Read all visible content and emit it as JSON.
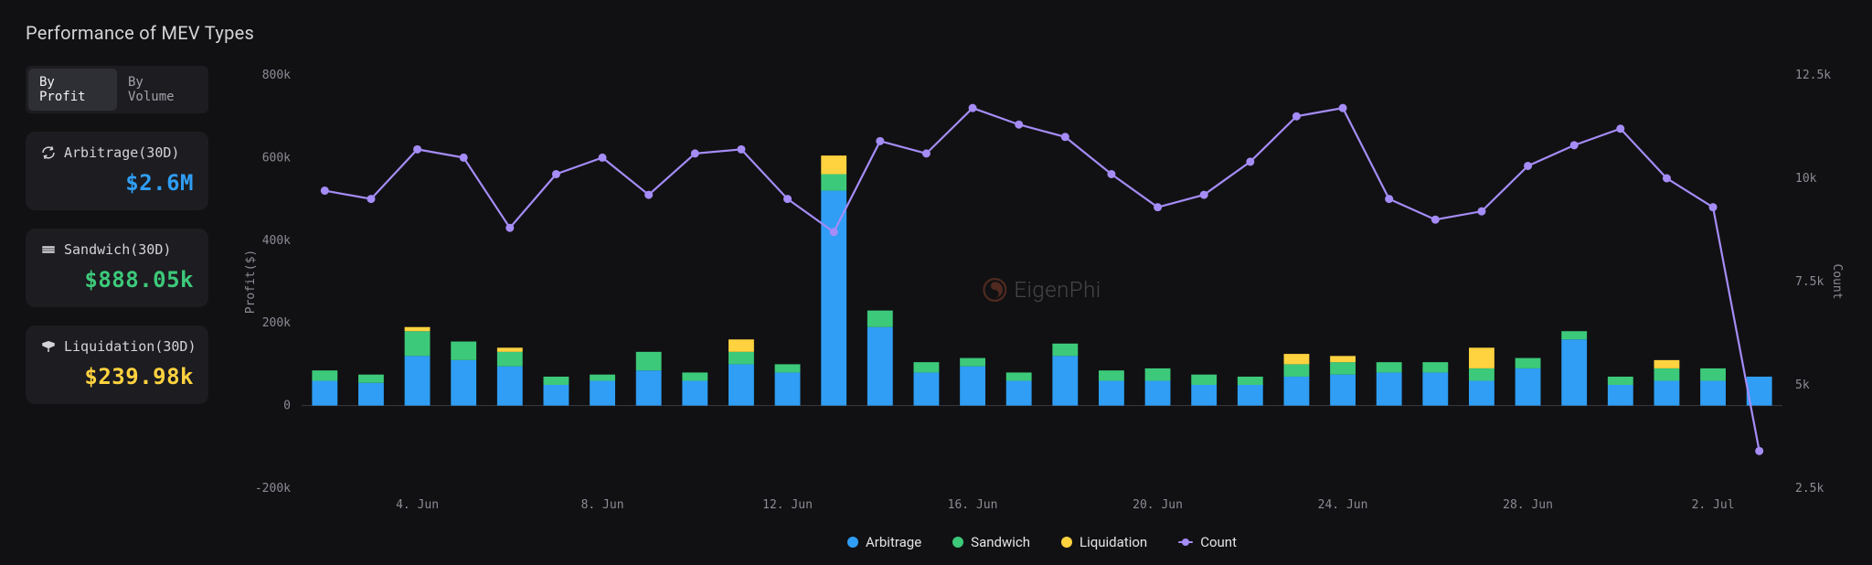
{
  "title": "Performance of MEV Types",
  "toggle": {
    "options": [
      "By Profit",
      "By Volume"
    ],
    "active_index": 0
  },
  "cards": [
    {
      "icon": "arbitrage",
      "label": "Arbitrage(30D)",
      "value": "$2.6M",
      "value_color": "#2f9ef4"
    },
    {
      "icon": "sandwich",
      "label": "Sandwich(30D)",
      "value": "$888.05k",
      "value_color": "#3dc97a"
    },
    {
      "icon": "liquidation",
      "label": "Liquidation(30D)",
      "value": "$239.98k",
      "value_color": "#ffd23f"
    }
  ],
  "colors": {
    "background": "#111113",
    "card_bg": "#1c1c21",
    "text_primary": "#e4e4e7",
    "text_muted": "#8b8b96",
    "axis_line": "#3a3a42",
    "arbitrage": "#2f9ef4",
    "sandwich": "#3dc97a",
    "liquidation": "#ffd23f",
    "count_line": "#a58cf7",
    "right_axis": "#8a7dd6",
    "grid": "#2a2a30"
  },
  "watermark": "EigenPhi",
  "chart": {
    "type": "stacked_bar_with_line",
    "y_left": {
      "title": "Profit($)",
      "min": -200000,
      "max": 800000,
      "ticks": [
        -200000,
        0,
        200000,
        400000,
        600000,
        800000
      ],
      "tick_labels": [
        "-200k",
        "0",
        "200k",
        "400k",
        "600k",
        "800k"
      ]
    },
    "y_right": {
      "title": "Count",
      "min": 2500,
      "max": 12500,
      "ticks": [
        2500,
        5000,
        7500,
        10000,
        12500
      ],
      "tick_labels": [
        "2.5k",
        "5k",
        "7.5k",
        "10k",
        "12.5k"
      ]
    },
    "x_ticks": {
      "indices": [
        2,
        6,
        10,
        14,
        18,
        22,
        26,
        30
      ],
      "labels": [
        "4. Jun",
        "8. Jun",
        "12. Jun",
        "16. Jun",
        "20. Jun",
        "24. Jun",
        "28. Jun",
        "2. Jul"
      ]
    },
    "bar_width_ratio": 0.55,
    "series": [
      {
        "arb": 60000,
        "san": 25000,
        "liq": 0,
        "count": 9700
      },
      {
        "arb": 55000,
        "san": 20000,
        "liq": 0,
        "count": 9500
      },
      {
        "arb": 120000,
        "san": 60000,
        "liq": 10000,
        "count": 10700
      },
      {
        "arb": 110000,
        "san": 45000,
        "liq": 0,
        "count": 10500
      },
      {
        "arb": 95000,
        "san": 35000,
        "liq": 10000,
        "count": 8800
      },
      {
        "arb": 50000,
        "san": 20000,
        "liq": 0,
        "count": 10100
      },
      {
        "arb": 60000,
        "san": 15000,
        "liq": 0,
        "count": 10500
      },
      {
        "arb": 85000,
        "san": 45000,
        "liq": 0,
        "count": 9600
      },
      {
        "arb": 60000,
        "san": 20000,
        "liq": 0,
        "count": 10600
      },
      {
        "arb": 100000,
        "san": 30000,
        "liq": 30000,
        "count": 10700
      },
      {
        "arb": 80000,
        "san": 20000,
        "liq": 0,
        "count": 9500
      },
      {
        "arb": 520000,
        "san": 40000,
        "liq": 45000,
        "count": 8700
      },
      {
        "arb": 190000,
        "san": 40000,
        "liq": 0,
        "count": 10900
      },
      {
        "arb": 80000,
        "san": 25000,
        "liq": 0,
        "count": 10600
      },
      {
        "arb": 95000,
        "san": 20000,
        "liq": 0,
        "count": 11700
      },
      {
        "arb": 60000,
        "san": 20000,
        "liq": 0,
        "count": 11300
      },
      {
        "arb": 120000,
        "san": 30000,
        "liq": 0,
        "count": 11000
      },
      {
        "arb": 60000,
        "san": 25000,
        "liq": 0,
        "count": 10100
      },
      {
        "arb": 60000,
        "san": 30000,
        "liq": 0,
        "count": 9300
      },
      {
        "arb": 50000,
        "san": 25000,
        "liq": 0,
        "count": 9600
      },
      {
        "arb": 50000,
        "san": 20000,
        "liq": 0,
        "count": 10400
      },
      {
        "arb": 70000,
        "san": 30000,
        "liq": 25000,
        "count": 11500
      },
      {
        "arb": 75000,
        "san": 30000,
        "liq": 15000,
        "count": 11700
      },
      {
        "arb": 80000,
        "san": 25000,
        "liq": 0,
        "count": 9500
      },
      {
        "arb": 80000,
        "san": 25000,
        "liq": 0,
        "count": 9000
      },
      {
        "arb": 60000,
        "san": 30000,
        "liq": 50000,
        "count": 9200
      },
      {
        "arb": 90000,
        "san": 25000,
        "liq": 0,
        "count": 10300
      },
      {
        "arb": 160000,
        "san": 20000,
        "liq": 0,
        "count": 10800
      },
      {
        "arb": 50000,
        "san": 20000,
        "liq": 0,
        "count": 11200
      },
      {
        "arb": 60000,
        "san": 30000,
        "liq": 20000,
        "count": 10000
      },
      {
        "arb": 60000,
        "san": 30000,
        "liq": 0,
        "count": 9300
      },
      {
        "arb": 70000,
        "san": 0,
        "liq": 0,
        "count": 3400
      }
    ],
    "legend": [
      {
        "key": "arbitrage",
        "label": "Arbitrage",
        "shape": "dot",
        "color": "#2f9ef4"
      },
      {
        "key": "sandwich",
        "label": "Sandwich",
        "shape": "dot",
        "color": "#3dc97a"
      },
      {
        "key": "liquidation",
        "label": "Liquidation",
        "shape": "dot",
        "color": "#ffd23f"
      },
      {
        "key": "count",
        "label": "Count",
        "shape": "line",
        "color": "#a58cf7"
      }
    ]
  }
}
